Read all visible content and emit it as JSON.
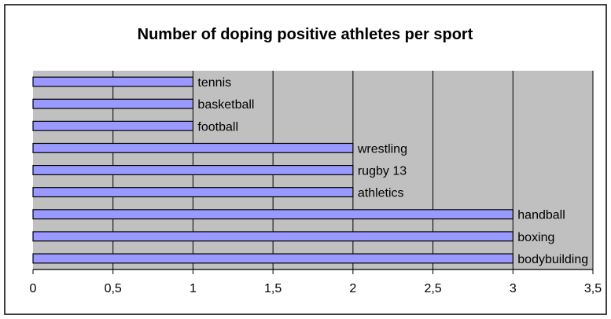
{
  "chart_data": {
    "type": "bar",
    "orientation": "horizontal",
    "title": "Number of doping positive athletes per sport",
    "xlabel": "",
    "ylabel": "",
    "categories": [
      "tennis",
      "basketball",
      "football",
      "wrestling",
      "rugby 13",
      "athletics",
      "handball",
      "boxing",
      "bodybuilding"
    ],
    "values": [
      1,
      1,
      1,
      2,
      2,
      2,
      3,
      3,
      3
    ],
    "xlim": [
      0,
      3.5
    ],
    "x_ticks": [
      "0",
      "0,5",
      "1",
      "1,5",
      "2",
      "2,5",
      "3",
      "3,5"
    ],
    "grid": true,
    "legend": "none",
    "category_labels": "at bar end",
    "colors": {
      "bar_fill": "#9999ff",
      "bar_stroke": "#000000",
      "plot_background": "#c0c0c0",
      "gridline": "#000000"
    }
  }
}
